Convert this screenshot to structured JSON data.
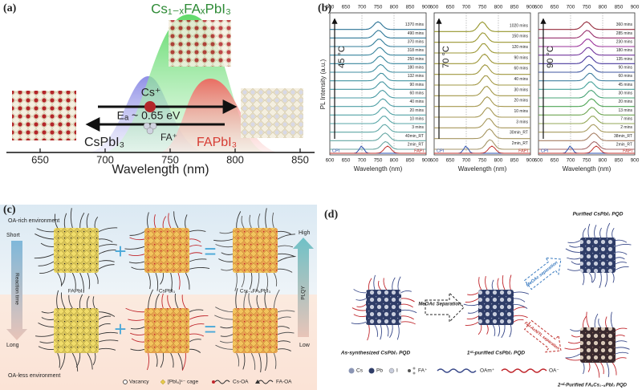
{
  "panel_a": {
    "label": "(a)",
    "composition": "Cs₁₋ₓFAₓPbI₃",
    "cation_cs": "Cs⁺",
    "activation_energy": "Eₐ ~ 0.65 eV",
    "cation_fa": "FA⁺",
    "left_phase": "CsPbI₃",
    "right_phase": "FAPbI₃",
    "x_ticks": [
      650,
      700,
      750,
      800,
      850
    ],
    "x_label": "Wavelength (nm)"
  },
  "panel_b": {
    "label": "(b)",
    "y_label": "PL Intensity (a.u.)",
    "x_label": "Wavelength (nm)",
    "x_ticks": [
      600,
      650,
      700,
      750,
      800,
      850,
      900
    ],
    "reference_left": "CPI",
    "reference_right": "FAPI",
    "subplots": [
      {
        "temperature": "45 °C",
        "times": [
          "1370 mins",
          "490 mins",
          "370 mins",
          "318 mins",
          "250 mins",
          "180 mins",
          "132 mins",
          "90 mins",
          "60 mins",
          "40 mins",
          "20 mins",
          "10 mins",
          "3 mins",
          "40min_RT",
          "2min_RT"
        ]
      },
      {
        "temperature": "70 °C",
        "times": [
          "1020 mins",
          "150 mins",
          "120 mins",
          "90 mins",
          "60 mins",
          "40 mins",
          "30 mins",
          "20 mins",
          "10 mins",
          "3 mins",
          "30min_RT",
          "2min_RT"
        ]
      },
      {
        "temperature": "90 °C",
        "times": [
          "360 mins",
          "285 mins",
          "230 mins",
          "180 mins",
          "135 mins",
          "90 mins",
          "60 mins",
          "45 mins",
          "30 mins",
          "20 mins",
          "13 mins",
          "7 mins",
          "2 mins",
          "38min_RT",
          "2min_RT"
        ]
      }
    ]
  },
  "panel_c": {
    "label": "(c)",
    "top_environment": "OA-rich environment",
    "bottom_environment": "OA-less environment",
    "time_short": "Short",
    "time_axis": "Reaction time",
    "time_long": "Long",
    "plqy_high": "High",
    "plqy_axis": "PLQY",
    "plqy_low": "Low",
    "crystals": [
      "FAPbI₃",
      "CsPbI₃",
      "Cs₁₋ₓFAₓPbI₃"
    ],
    "legend": [
      "Vacancy",
      "[PbI₆]⁴⁻ cage",
      "Cs-OA",
      "FA-OA"
    ]
  },
  "panel_d": {
    "label": "(d)",
    "start": "As-synthesized CsPbI₃ PQD",
    "first_step": "MeOAc Separation",
    "intermediate": "1ˢᵗ-purified CsPbI₃ PQD",
    "upper_step": "MeOAc separation",
    "upper_product": "Purified CsPbI₃ PQD",
    "lower_step": "FAI-AcN/TL separation",
    "lower_product": "2ⁿᵈ-Purified FAₓCs₁₋ₓPbI₃ PQD",
    "legend": [
      "Cs",
      "Pb",
      "I",
      "FA⁺",
      "OAm⁺",
      "OA⁻"
    ]
  }
}
